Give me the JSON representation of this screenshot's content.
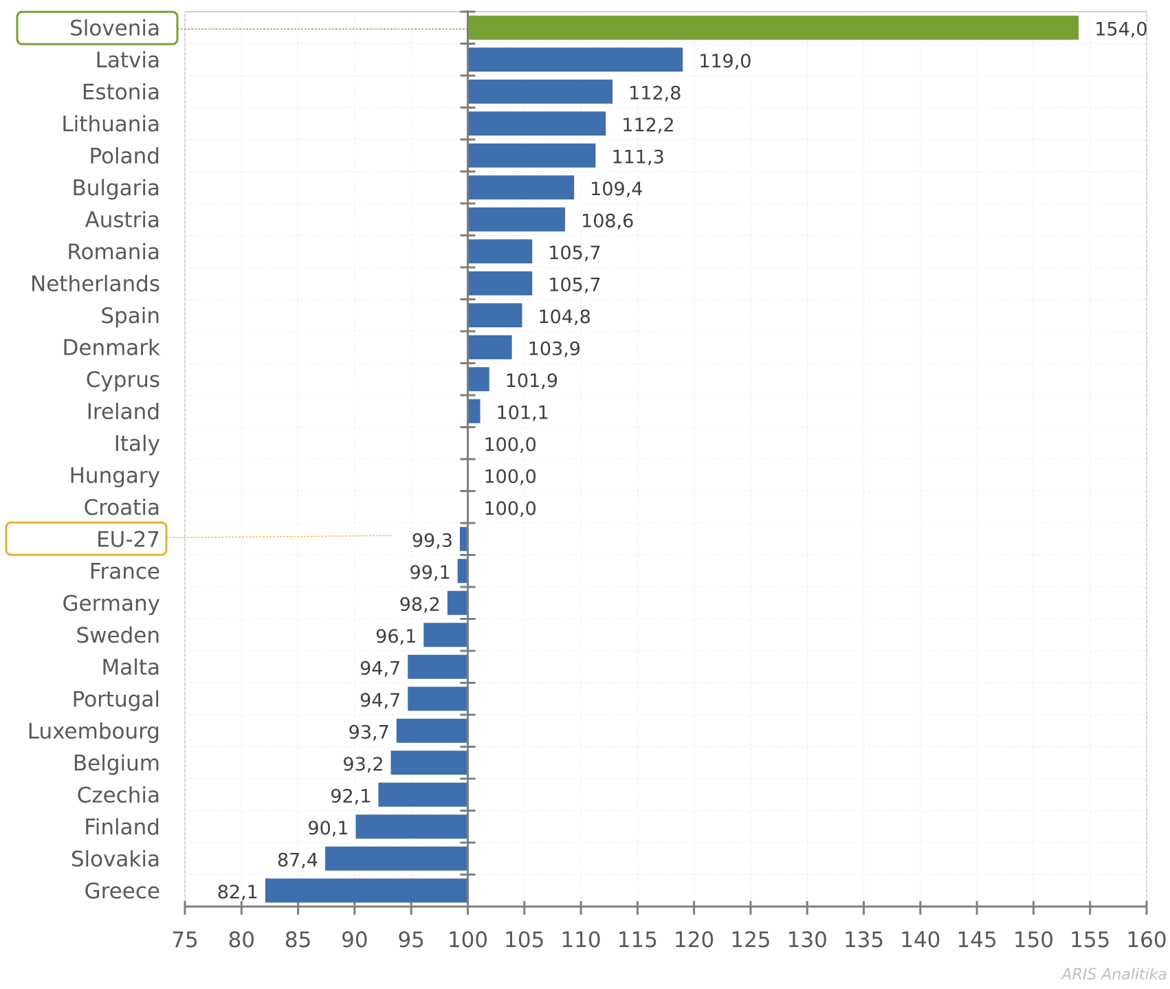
{
  "chart_data": {
    "type": "bar",
    "orientation": "horizontal",
    "baseline": 100,
    "categories": [
      "Slovenia",
      "Latvia",
      "Estonia",
      "Lithuania",
      "Poland",
      "Bulgaria",
      "Austria",
      "Romania",
      "Netherlands",
      "Spain",
      "Denmark",
      "Cyprus",
      "Ireland",
      "Italy",
      "Hungary",
      "Croatia",
      "EU-27",
      "France",
      "Germany",
      "Sweden",
      "Malta",
      "Portugal",
      "Luxembourg",
      "Belgium",
      "Czechia",
      "Finland",
      "Slovakia",
      "Greece"
    ],
    "values": [
      154.0,
      119.0,
      112.8,
      112.2,
      111.3,
      109.4,
      108.6,
      105.7,
      105.7,
      104.8,
      103.9,
      101.9,
      101.1,
      100.0,
      100.0,
      100.0,
      99.3,
      99.1,
      98.2,
      96.1,
      94.7,
      94.7,
      93.7,
      93.2,
      92.1,
      90.1,
      87.4,
      82.1
    ],
    "value_labels": [
      "154,0",
      "119,0",
      "112,8",
      "112,2",
      "111,3",
      "109,4",
      "108,6",
      "105,7",
      "105,7",
      "104,8",
      "103,9",
      "101,9",
      "101,1",
      "100,0",
      "100,0",
      "100,0",
      "99,3",
      "99,1",
      "98,2",
      "96,1",
      "94,7",
      "94,7",
      "93,7",
      "93,2",
      "92,1",
      "90,1",
      "87,4",
      "82,1"
    ],
    "highlights": {
      "Slovenia": "#77a033",
      "EU-27": "#e8b030"
    },
    "xlim": [
      75,
      160
    ],
    "xticks": [
      75,
      80,
      85,
      90,
      95,
      100,
      105,
      110,
      115,
      120,
      125,
      130,
      135,
      140,
      145,
      150,
      155,
      160
    ],
    "grid": true,
    "title": "",
    "xlabel": "",
    "ylabel": ""
  },
  "colors": {
    "bar": "#3f6fae",
    "highlight_bar": "#77a033",
    "eu_box": "#e8b030"
  },
  "watermark": "ARIS Analitika"
}
